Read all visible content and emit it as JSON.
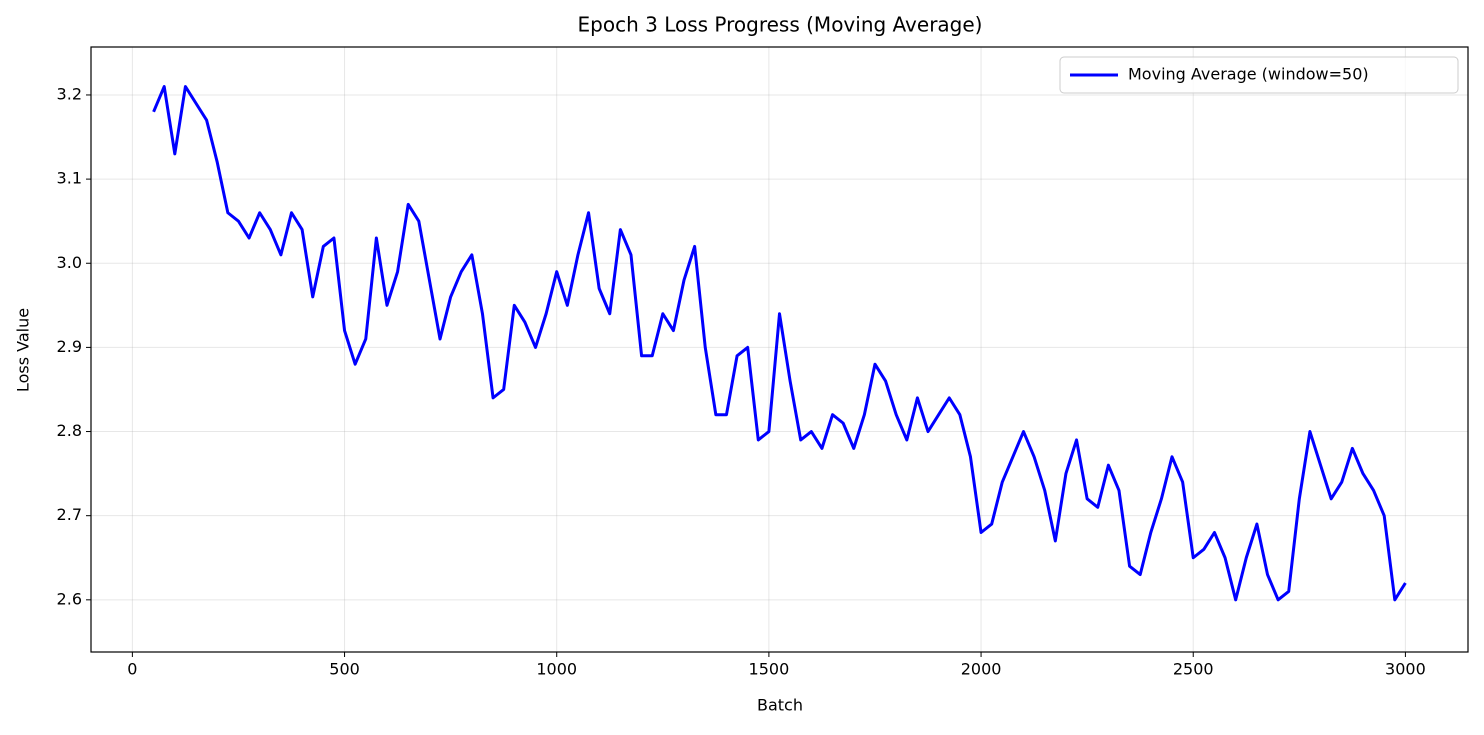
{
  "chart_data": {
    "type": "line",
    "title": "Epoch 3 Loss Progress (Moving Average)",
    "x_label": "Batch",
    "y_label": "Loss Value",
    "x": [
      50,
      75,
      100,
      125,
      150,
      175,
      200,
      225,
      250,
      275,
      300,
      325,
      350,
      375,
      400,
      425,
      450,
      475,
      500,
      525,
      550,
      575,
      600,
      625,
      650,
      675,
      700,
      725,
      750,
      775,
      800,
      825,
      850,
      875,
      900,
      925,
      950,
      975,
      1000,
      1025,
      1050,
      1075,
      1100,
      1125,
      1150,
      1175,
      1200,
      1225,
      1250,
      1275,
      1300,
      1325,
      1350,
      1375,
      1400,
      1425,
      1450,
      1475,
      1500,
      1525,
      1550,
      1575,
      1600,
      1625,
      1650,
      1675,
      1700,
      1725,
      1750,
      1775,
      1800,
      1825,
      1850,
      1875,
      1900,
      1925,
      1950,
      1975,
      2000,
      2025,
      2050,
      2075,
      2100,
      2125,
      2150,
      2175,
      2200,
      2225,
      2250,
      2275,
      2300,
      2325,
      2350,
      2375,
      2400,
      2425,
      2450,
      2475,
      2500,
      2525,
      2550,
      2575,
      2600,
      2625,
      2650,
      2675,
      2700,
      2725,
      2750,
      2775,
      2800,
      2825,
      2850,
      2875,
      2900,
      2925,
      2950,
      2975,
      3000
    ],
    "series": [
      {
        "name": "Moving Average (window=50)",
        "color": "#0000ff",
        "values": [
          3.18,
          3.21,
          3.13,
          3.21,
          3.19,
          3.17,
          3.12,
          3.06,
          3.05,
          3.03,
          3.06,
          3.04,
          3.01,
          3.06,
          3.04,
          2.96,
          3.02,
          3.03,
          2.92,
          2.88,
          2.91,
          3.03,
          2.95,
          2.99,
          3.07,
          3.05,
          2.98,
          2.91,
          2.96,
          2.99,
          3.01,
          2.94,
          2.84,
          2.85,
          2.95,
          2.93,
          2.9,
          2.94,
          2.99,
          2.95,
          3.01,
          3.06,
          2.97,
          2.94,
          3.04,
          3.01,
          2.89,
          2.89,
          2.94,
          2.92,
          2.98,
          3.02,
          2.9,
          2.82,
          2.82,
          2.89,
          2.9,
          2.79,
          2.8,
          2.94,
          2.86,
          2.79,
          2.8,
          2.78,
          2.82,
          2.81,
          2.78,
          2.82,
          2.88,
          2.86,
          2.82,
          2.79,
          2.84,
          2.8,
          2.82,
          2.84,
          2.82,
          2.77,
          2.68,
          2.69,
          2.74,
          2.77,
          2.8,
          2.77,
          2.73,
          2.67,
          2.75,
          2.79,
          2.72,
          2.71,
          2.76,
          2.73,
          2.64,
          2.63,
          2.68,
          2.72,
          2.77,
          2.74,
          2.65,
          2.66,
          2.68,
          2.65,
          2.6,
          2.65,
          2.69,
          2.63,
          2.6,
          2.61,
          2.72,
          2.8,
          2.76,
          2.72,
          2.74,
          2.78,
          2.75,
          2.73,
          2.7,
          2.6,
          2.62
        ]
      }
    ],
    "xlim": [
      -97.5,
      3147.5
    ],
    "ylim": [
      2.538,
      3.257
    ],
    "xticks": [
      0,
      500,
      1000,
      1500,
      2000,
      2500,
      3000
    ],
    "yticks": [
      2.6,
      2.7,
      2.8,
      2.9,
      {
        "value": 3,
        "label": "3.0"
      },
      3.1,
      3.2
    ],
    "grid": true,
    "legend": "upper-right"
  }
}
